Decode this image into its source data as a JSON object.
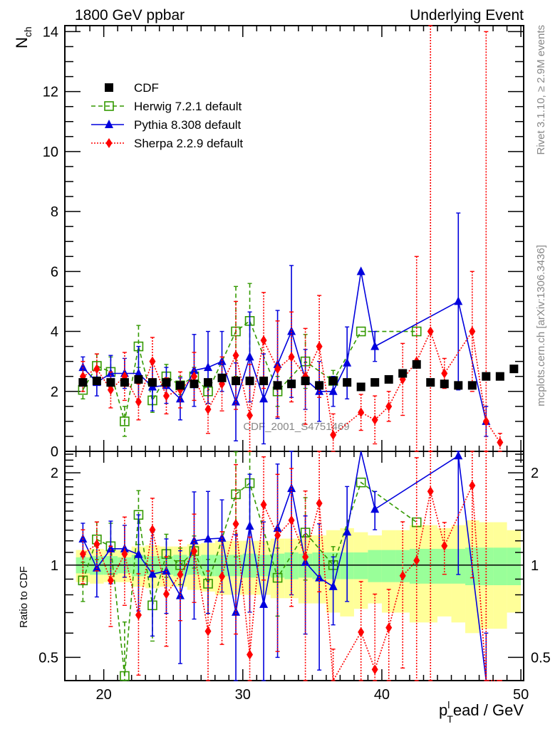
{
  "chart_data": {
    "type": "scatter",
    "title_left": "1800 GeV ppbar",
    "title_right": "Underlying Event",
    "xlabel": "p_T^lead / GeV",
    "xlabel_main": "p",
    "xlabel_sub": "T",
    "xlabel_sup": "l",
    "xlabel_rest": "ead / GeV",
    "ylabel": "N_ch",
    "ylabel_main": "N",
    "ylabel_sub": "ch",
    "ratio_ylabel": "Ratio to CDF",
    "xlim": [
      17.2,
      50.2
    ],
    "ylim": [
      0,
      14.2
    ],
    "ratio_ylim": [
      0.42,
      2.35
    ],
    "ratio_scale": "log",
    "x_ticks": [
      20,
      30,
      40,
      50
    ],
    "y_ticks": [
      0,
      2,
      4,
      6,
      8,
      10,
      12,
      14
    ],
    "ratio_y_ticks": [
      0.5,
      1,
      2
    ],
    "ratio_y_tick_labels": [
      "0.5",
      "1",
      "2"
    ],
    "watermark": "CDF_2001_S4751469",
    "side_label_top": "Rivet 3.1.10, ≥ 2.9M events",
    "side_label_bottom": "mcplots.cern.ch [arXiv:1306.3436]",
    "legend_position": "top-left",
    "x": [
      18.5,
      19.5,
      20.5,
      21.5,
      22.5,
      23.5,
      24.5,
      25.5,
      26.5,
      27.5,
      28.5,
      29.5,
      30.5,
      31.5,
      32.5,
      33.5,
      34.5,
      35.5,
      36.5,
      37.5,
      38.5,
      39.5,
      40.5,
      41.5,
      42.5,
      43.5,
      44.5,
      45.5,
      46.5,
      47.5,
      48.5,
      49.5
    ],
    "series": [
      {
        "name": "CDF",
        "color": "#000000",
        "marker": "square-filled",
        "line": "none",
        "values": [
          2.3,
          2.35,
          2.3,
          2.3,
          2.4,
          2.3,
          2.3,
          2.2,
          2.25,
          2.3,
          2.45,
          2.35,
          2.35,
          2.35,
          2.2,
          2.25,
          2.35,
          2.2,
          2.35,
          2.3,
          2.15,
          2.3,
          2.4,
          2.6,
          2.9,
          2.3,
          2.25,
          2.2,
          2.2,
          2.5,
          2.5,
          2.75
        ],
        "band_inner": [
          0.06,
          0.07,
          0.07,
          0.06,
          0.08,
          0.07,
          0.07,
          0.08,
          0.07,
          0.08,
          0.08,
          0.08,
          0.09,
          0.08,
          0.09,
          0.1,
          0.09,
          0.1,
          0.1,
          0.1,
          0.1,
          0.12,
          0.12,
          0.12,
          0.13,
          0.13,
          0.13,
          0.13,
          0.14,
          0.14,
          0.14,
          0.14
        ],
        "band_outer": [
          0.12,
          0.13,
          0.12,
          0.12,
          0.15,
          0.16,
          0.15,
          0.15,
          0.17,
          0.18,
          0.2,
          0.2,
          0.2,
          0.2,
          0.22,
          0.22,
          0.25,
          0.25,
          0.3,
          0.32,
          0.28,
          0.25,
          0.3,
          0.3,
          0.35,
          0.35,
          0.32,
          0.35,
          0.4,
          0.38,
          0.38,
          0.3
        ]
      },
      {
        "name": "Herwig 7.2.1 default",
        "color": "#339900",
        "marker": "square-open",
        "line": "dashed",
        "values": [
          2.05,
          2.85,
          2.65,
          1.0,
          3.5,
          1.7,
          2.5,
          2.2,
          2.5,
          2.0,
          null,
          4.0,
          4.35,
          null,
          2.0,
          null,
          3.0,
          null,
          2.35,
          null,
          4.0,
          null,
          null,
          null,
          4.0,
          null,
          null,
          null,
          null,
          null,
          null,
          null
        ],
        "err": [
          0.3,
          0.4,
          0.5,
          0.5,
          0.7,
          0.4,
          0.4,
          0.3,
          0.3,
          0.4,
          null,
          1.5,
          1.25,
          null,
          0.5,
          null,
          0.9,
          null,
          0.35,
          null,
          0,
          null,
          null,
          null,
          0,
          null,
          null,
          null,
          null,
          null,
          null,
          null
        ]
      },
      {
        "name": "Pythia 8.308 default",
        "color": "#0000dd",
        "marker": "triangle-filled",
        "line": "solid",
        "values": [
          2.8,
          2.3,
          2.6,
          2.6,
          2.6,
          2.15,
          2.2,
          1.75,
          2.7,
          2.8,
          3.0,
          1.65,
          3.15,
          1.75,
          2.9,
          4.0,
          2.4,
          2.0,
          2.0,
          2.95,
          6.0,
          3.5,
          null,
          null,
          null,
          null,
          null,
          5.0,
          null,
          1.0,
          null,
          null
        ],
        "err": [
          0.35,
          0.45,
          0.6,
          0.5,
          0.9,
          0.8,
          0.6,
          0.7,
          1.2,
          1.2,
          1.0,
          1.3,
          1.5,
          1.5,
          1.8,
          2.2,
          1.0,
          1.0,
          0.5,
          1.2,
          0,
          0.5,
          null,
          null,
          null,
          null,
          null,
          2.95,
          null,
          0.5,
          null,
          null
        ]
      },
      {
        "name": "Sherpa 2.2.9 default",
        "color": "#ff0000",
        "marker": "diamond-filled",
        "line": "dotted",
        "values": [
          2.5,
          2.75,
          2.05,
          2.5,
          1.65,
          3.0,
          1.85,
          2.05,
          2.5,
          1.4,
          2.25,
          3.2,
          1.2,
          3.7,
          2.75,
          3.15,
          2.5,
          3.5,
          0.55,
          null,
          1.3,
          1.05,
          1.5,
          2.4,
          3.0,
          4.0,
          2.6,
          null,
          4.0,
          1.0,
          0.3,
          null
        ],
        "err": [
          0.5,
          0.5,
          0.6,
          0.8,
          0.6,
          0.8,
          0.6,
          0.6,
          0.8,
          0.8,
          0.9,
          1.8,
          1.7,
          1.6,
          1.6,
          1.5,
          1.6,
          1.7,
          0.7,
          null,
          0.6,
          0.8,
          0.5,
          1.2,
          3.5,
          12,
          0.5,
          null,
          2.0,
          13,
          0.3,
          null
        ]
      }
    ],
    "legend": [
      {
        "label": "CDF"
      },
      {
        "label": "Herwig 7.2.1 default"
      },
      {
        "label": "Pythia 8.308 default"
      },
      {
        "label": "Sherpa 2.2.9 default"
      }
    ]
  }
}
